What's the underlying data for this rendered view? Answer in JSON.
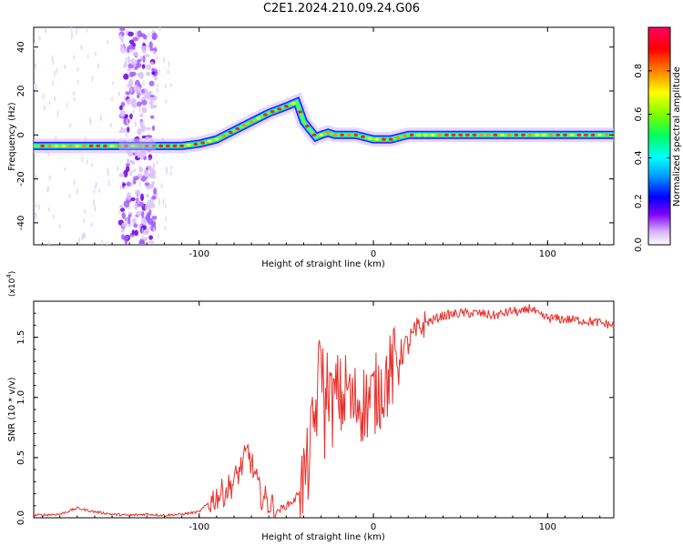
{
  "title": "C2E1.2024.210.09.24.G06",
  "chart_data": [
    {
      "type": "heatmap",
      "xlabel": "Height of straight line (km)",
      "ylabel": "Frequency (Hz)",
      "xlim": [
        -195,
        138
      ],
      "ylim": [
        -50,
        49
      ],
      "x_ticks": [
        -100,
        0,
        100
      ],
      "y_ticks": [
        -40,
        -20,
        0,
        20,
        40
      ],
      "colorbar": {
        "label": "Normalized spectral amplitude",
        "ticks": [
          "0.0",
          "0.2",
          "0.4",
          "0.6",
          "0.8"
        ],
        "range": [
          0,
          1
        ]
      },
      "ridge": {
        "x": [
          -195,
          -170,
          -145,
          -125,
          -110,
          -100,
          -90,
          -80,
          -70,
          -60,
          -50,
          -44,
          -40,
          -36,
          -33,
          -30,
          -26,
          -22,
          -18,
          -10,
          0,
          10,
          20,
          60,
          100,
          138
        ],
        "y": [
          -5,
          -5,
          -5,
          -5,
          -5,
          -4,
          -2,
          2,
          6,
          10,
          13,
          15,
          6,
          2,
          -1,
          0,
          1,
          0,
          0,
          0,
          -2,
          -2,
          0,
          0,
          0,
          0
        ]
      },
      "noise_band_x": [
        -145,
        -125
      ]
    },
    {
      "type": "line",
      "xlabel": "Height of straight line (km)",
      "ylabel": "SNR (10 * v/v)",
      "y_multiplier": "(x10",
      "y_multiplier_exp": "4",
      "y_multiplier_close": ")",
      "xlim": [
        -195,
        138
      ],
      "ylim": [
        0,
        1.8
      ],
      "x_ticks": [
        -100,
        0,
        100
      ],
      "y_ticks": [
        0.0,
        0.5,
        1.0,
        1.5
      ],
      "y_tick_labels": [
        "0.0",
        "0.5",
        "1.0",
        "1.5"
      ],
      "color": "#e8302a",
      "series": [
        {
          "x": [
            -195,
            -180,
            -170,
            -160,
            -150,
            -140,
            -130,
            -120,
            -110,
            -100,
            -95,
            -90,
            -85,
            -80,
            -75,
            -72,
            -68,
            -65,
            -60,
            -55,
            -50,
            -45,
            -42,
            -38,
            -35,
            -32,
            -30,
            -28,
            -26,
            -24,
            -22,
            -20,
            -18,
            -15,
            -12,
            -10,
            -5,
            0,
            5,
            10,
            15,
            20,
            25,
            30,
            35,
            40,
            50,
            60,
            70,
            80,
            85,
            90,
            95,
            100,
            110,
            120,
            130,
            138
          ],
          "y": [
            0.02,
            0.03,
            0.08,
            0.05,
            0.03,
            0.02,
            0.03,
            0.02,
            0.03,
            0.05,
            0.12,
            0.18,
            0.22,
            0.3,
            0.45,
            0.55,
            0.35,
            0.2,
            0.12,
            0.06,
            0.1,
            0.15,
            0.25,
            0.4,
            0.7,
            1.0,
            1.5,
            0.8,
            1.2,
            0.9,
            1.0,
            1.05,
            0.95,
            1.1,
            0.9,
            0.98,
            0.95,
            1.0,
            1.1,
            1.2,
            1.35,
            1.45,
            1.55,
            1.62,
            1.65,
            1.68,
            1.7,
            1.7,
            1.68,
            1.72,
            1.7,
            1.75,
            1.68,
            1.66,
            1.65,
            1.64,
            1.62,
            1.6
          ]
        }
      ]
    }
  ]
}
